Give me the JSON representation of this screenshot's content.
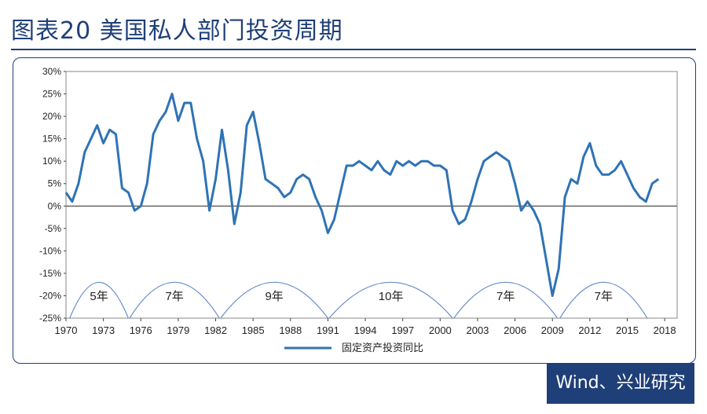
{
  "figure": {
    "title": "图表20  美国私人部门投资周期",
    "source": "Wind、兴业研究"
  },
  "colors": {
    "line": "#2f73b5",
    "accent": "#1f3f78",
    "cycle_arc": "#6a8fc9"
  },
  "chart_data": {
    "type": "line",
    "title": "",
    "xlabel": "",
    "ylabel": "",
    "ylim": [
      -25,
      30
    ],
    "xlim": [
      1970,
      2019
    ],
    "y_ticks": [
      30,
      25,
      20,
      15,
      10,
      5,
      0,
      -5,
      -10,
      -15,
      -20,
      -25
    ],
    "y_tick_labels": [
      "30%",
      "25%",
      "20%",
      "15%",
      "10%",
      "5%",
      "0%",
      "-5%",
      "-10%",
      "-15%",
      "-20%",
      "-25%"
    ],
    "x_ticks": [
      "1970",
      "1973",
      "1976",
      "1979",
      "1982",
      "1985",
      "1988",
      "1991",
      "1994",
      "1997",
      "2000",
      "2003",
      "2006",
      "2009",
      "2012",
      "2015",
      "2018"
    ],
    "grid": false,
    "legend_position": "bottom",
    "series": [
      {
        "name": "固定资产投资同比",
        "x": [
          1970,
          1970.5,
          1971,
          1971.5,
          1972,
          1972.5,
          1973,
          1973.5,
          1974,
          1974.5,
          1975,
          1975.5,
          1976,
          1976.5,
          1977,
          1977.5,
          1978,
          1978.5,
          1979,
          1979.5,
          1980,
          1980.5,
          1981,
          1981.5,
          1982,
          1982.5,
          1983,
          1983.5,
          1984,
          1984.5,
          1985,
          1985.5,
          1986,
          1986.5,
          1987,
          1987.5,
          1988,
          1988.5,
          1989,
          1989.5,
          1990,
          1990.5,
          1991,
          1991.5,
          1992,
          1992.5,
          1993,
          1993.5,
          1994,
          1994.5,
          1995,
          1995.5,
          1996,
          1996.5,
          1997,
          1997.5,
          1998,
          1998.5,
          1999,
          1999.5,
          2000,
          2000.5,
          2001,
          2001.5,
          2002,
          2002.5,
          2003,
          2003.5,
          2004,
          2004.5,
          2005,
          2005.5,
          2006,
          2006.5,
          2007,
          2007.5,
          2008,
          2008.5,
          2009,
          2009.5,
          2010,
          2010.5,
          2011,
          2011.5,
          2012,
          2012.5,
          2013,
          2013.5,
          2014,
          2014.5,
          2015,
          2015.5,
          2016,
          2016.5,
          2017,
          2017.5
        ],
        "values": [
          3,
          1,
          5,
          12,
          15,
          18,
          14,
          17,
          16,
          4,
          3,
          -1,
          0,
          5,
          16,
          19,
          21,
          25,
          19,
          23,
          23,
          15,
          10,
          -1,
          6,
          17,
          8,
          -4,
          3,
          18,
          21,
          14,
          6,
          5,
          4,
          2,
          3,
          6,
          7,
          6,
          2,
          -1,
          -6,
          -3,
          3,
          9,
          9,
          10,
          9,
          8,
          10,
          8,
          7,
          10,
          9,
          10,
          9,
          10,
          10,
          9,
          9,
          8,
          -1,
          -4,
          -3,
          1,
          6,
          10,
          11,
          12,
          11,
          10,
          5,
          -1,
          1,
          -1,
          -4,
          -12,
          -20,
          -14,
          2,
          6,
          5,
          11,
          14,
          9,
          7,
          7,
          8,
          10,
          7,
          4,
          2,
          1,
          5,
          6
        ]
      }
    ],
    "cycles": [
      {
        "label": "5年",
        "start": 1970.3,
        "end": 1975.0
      },
      {
        "label": "7年",
        "start": 1975.1,
        "end": 1982.3
      },
      {
        "label": "9年",
        "start": 1982.4,
        "end": 1991.0
      },
      {
        "label": "10年",
        "start": 1991.1,
        "end": 2001.0
      },
      {
        "label": "7年",
        "start": 2001.1,
        "end": 2009.4
      },
      {
        "label": "7年",
        "start": 2009.6,
        "end": 2016.6
      }
    ]
  }
}
